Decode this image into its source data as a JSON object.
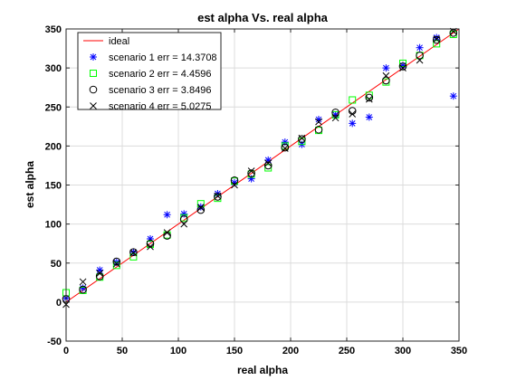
{
  "chart_data": {
    "type": "scatter",
    "title": "est alpha Vs. real alpha",
    "xlabel": "real alpha",
    "ylabel": "est alpha",
    "xlim": [
      0,
      350
    ],
    "ylim": [
      -50,
      350
    ],
    "xticks": [
      0,
      50,
      100,
      150,
      200,
      250,
      300,
      350
    ],
    "yticks": [
      -50,
      0,
      50,
      100,
      150,
      200,
      250,
      300,
      350
    ],
    "grid": true,
    "legend_position": "top-left",
    "ideal_line": {
      "name": "ideal",
      "color": "#ff0000",
      "points": [
        [
          0,
          0
        ],
        [
          350,
          350
        ]
      ]
    },
    "series": [
      {
        "name": "scenario 1 err = 14.3708",
        "marker": "asterisk",
        "color": "#0000ff",
        "points": [
          [
            0,
            5
          ],
          [
            15,
            18
          ],
          [
            30,
            41
          ],
          [
            45,
            51
          ],
          [
            60,
            64
          ],
          [
            75,
            81
          ],
          [
            90,
            112
          ],
          [
            105,
            113
          ],
          [
            120,
            122
          ],
          [
            135,
            139
          ],
          [
            150,
            153
          ],
          [
            165,
            158
          ],
          [
            180,
            182
          ],
          [
            195,
            205
          ],
          [
            210,
            202
          ],
          [
            225,
            234
          ],
          [
            240,
            240
          ],
          [
            255,
            229
          ],
          [
            270,
            237
          ],
          [
            285,
            300
          ],
          [
            300,
            303
          ],
          [
            315,
            326
          ],
          [
            330,
            339
          ],
          [
            345,
            264
          ]
        ]
      },
      {
        "name": "scenario 2 err = 4.4596",
        "marker": "square",
        "color": "#00ff00",
        "points": [
          [
            0,
            12
          ],
          [
            15,
            15
          ],
          [
            30,
            32
          ],
          [
            45,
            47
          ],
          [
            60,
            58
          ],
          [
            75,
            74
          ],
          [
            90,
            86
          ],
          [
            105,
            108
          ],
          [
            120,
            126
          ],
          [
            135,
            133
          ],
          [
            150,
            155
          ],
          [
            165,
            164
          ],
          [
            180,
            172
          ],
          [
            195,
            200
          ],
          [
            210,
            206
          ],
          [
            225,
            220
          ],
          [
            240,
            240
          ],
          [
            255,
            259
          ],
          [
            270,
            265
          ],
          [
            285,
            282
          ],
          [
            300,
            306
          ],
          [
            315,
            316
          ],
          [
            330,
            331
          ],
          [
            345,
            343
          ]
        ]
      },
      {
        "name": "scenario 3 err = 3.8496",
        "marker": "circle",
        "color": "#000000",
        "points": [
          [
            0,
            4
          ],
          [
            15,
            16
          ],
          [
            30,
            33
          ],
          [
            45,
            52
          ],
          [
            60,
            64
          ],
          [
            75,
            75
          ],
          [
            90,
            85
          ],
          [
            105,
            106
          ],
          [
            120,
            118
          ],
          [
            135,
            135
          ],
          [
            150,
            156
          ],
          [
            165,
            165
          ],
          [
            180,
            175
          ],
          [
            195,
            198
          ],
          [
            210,
            209
          ],
          [
            225,
            221
          ],
          [
            240,
            243
          ],
          [
            255,
            245
          ],
          [
            270,
            262
          ],
          [
            285,
            284
          ],
          [
            300,
            302
          ],
          [
            315,
            316
          ],
          [
            330,
            336
          ],
          [
            345,
            345
          ]
        ]
      },
      {
        "name": "scenario 4 err = 5.0275",
        "marker": "x",
        "color": "#000000",
        "points": [
          [
            0,
            -3
          ],
          [
            15,
            26
          ],
          [
            30,
            37
          ],
          [
            45,
            49
          ],
          [
            60,
            63
          ],
          [
            75,
            71
          ],
          [
            90,
            89
          ],
          [
            105,
            100
          ],
          [
            120,
            121
          ],
          [
            135,
            136
          ],
          [
            150,
            150
          ],
          [
            165,
            168
          ],
          [
            180,
            178
          ],
          [
            195,
            197
          ],
          [
            210,
            210
          ],
          [
            225,
            231
          ],
          [
            240,
            236
          ],
          [
            255,
            241
          ],
          [
            270,
            260
          ],
          [
            285,
            290
          ],
          [
            300,
            300
          ],
          [
            315,
            310
          ],
          [
            330,
            337
          ],
          [
            345,
            347
          ]
        ]
      }
    ]
  }
}
